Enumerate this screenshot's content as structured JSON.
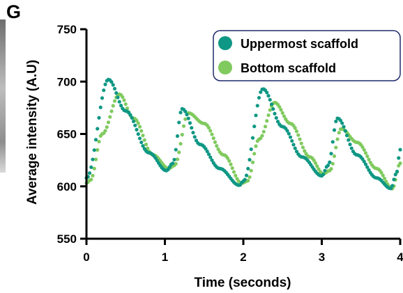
{
  "panel_label": "G",
  "colors": {
    "uppermost": "#0e9784",
    "bottom": "#80ca5f",
    "legend_border": "#1f2a6b",
    "axis": "#000000"
  },
  "chart_data": {
    "type": "scatter",
    "title": "",
    "xlabel": "Time (seconds)",
    "ylabel": "Average intensity (A.U)",
    "xlim": [
      0,
      4
    ],
    "ylim": [
      550,
      750
    ],
    "x_ticks": [
      "0",
      "1",
      "2",
      "3",
      "4"
    ],
    "y_ticks": [
      "550",
      "600",
      "650",
      "700",
      "750"
    ],
    "grid": false,
    "legend_position": "top-right",
    "series": [
      {
        "name": "Uppermost scaffold",
        "key": "uppermost",
        "keypoints": [
          [
            0.0,
            608
          ],
          [
            0.28,
            702
          ],
          [
            0.5,
            672
          ],
          [
            0.8,
            632
          ],
          [
            1.02,
            615
          ],
          [
            1.1,
            622
          ],
          [
            1.22,
            674
          ],
          [
            1.45,
            640
          ],
          [
            1.7,
            617
          ],
          [
            1.95,
            601
          ],
          [
            2.0,
            605
          ],
          [
            2.25,
            693
          ],
          [
            2.5,
            657
          ],
          [
            2.75,
            628
          ],
          [
            3.0,
            610
          ],
          [
            3.08,
            620
          ],
          [
            3.2,
            665
          ],
          [
            3.45,
            630
          ],
          [
            3.7,
            608
          ],
          [
            3.88,
            598
          ],
          [
            3.95,
            612
          ],
          [
            4.0,
            635
          ]
        ]
      },
      {
        "name": "Bottom scaffold",
        "key": "bottom",
        "keypoints": [
          [
            0.0,
            603
          ],
          [
            0.05,
            606
          ],
          [
            0.2,
            650
          ],
          [
            0.42,
            688
          ],
          [
            0.6,
            665
          ],
          [
            0.85,
            630
          ],
          [
            1.05,
            617
          ],
          [
            1.12,
            620
          ],
          [
            1.3,
            670
          ],
          [
            1.5,
            660
          ],
          [
            1.75,
            630
          ],
          [
            1.98,
            603
          ],
          [
            2.05,
            605
          ],
          [
            2.2,
            645
          ],
          [
            2.4,
            680
          ],
          [
            2.6,
            660
          ],
          [
            2.85,
            628
          ],
          [
            3.02,
            612
          ],
          [
            3.1,
            615
          ],
          [
            3.25,
            655
          ],
          [
            3.45,
            642
          ],
          [
            3.7,
            617
          ],
          [
            3.9,
            598
          ],
          [
            4.0,
            622
          ]
        ]
      }
    ]
  }
}
